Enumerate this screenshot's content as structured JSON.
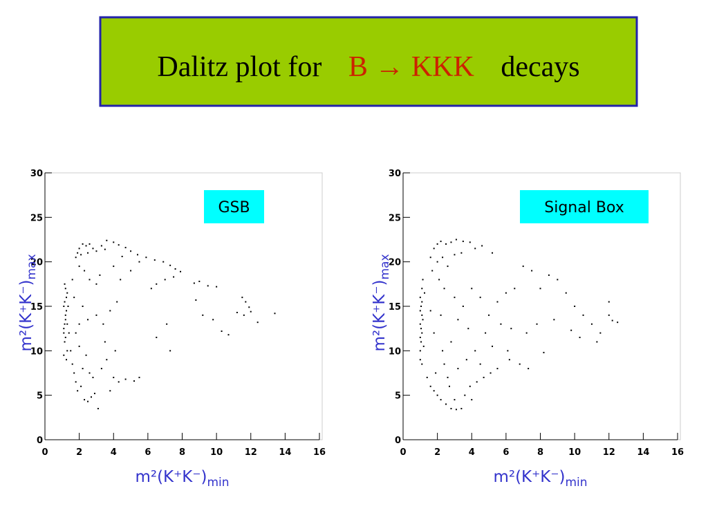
{
  "slide_title": {
    "prefix": "Dalitz plot for",
    "formula": "B → KKK",
    "suffix": "decays"
  },
  "chart_data": [
    {
      "type": "scatter",
      "legend": "GSB",
      "legend_color": "#00ffff",
      "color": "#000000",
      "xlabel": {
        "main": "m²(K⁺K⁻)",
        "sub": "min"
      },
      "ylabel": {
        "main": "m²(K⁺K⁻)",
        "sub": "max"
      },
      "xlim": [
        0,
        16
      ],
      "ylim": [
        0,
        30
      ],
      "xticks": [
        0,
        2,
        4,
        6,
        8,
        10,
        12,
        14,
        16
      ],
      "yticks": [
        0,
        5,
        10,
        15,
        20,
        25,
        30
      ],
      "x": [
        1.1,
        1.15,
        1.2,
        1.1,
        1.25,
        1.2,
        1.15,
        1.3,
        1.1,
        1.2,
        1.25,
        1.15,
        1.3,
        1.1,
        1.2,
        1.3,
        1.15,
        1.35,
        1.4,
        1.25,
        1.8,
        2.0,
        2.2,
        2.4,
        2.6,
        2.8,
        3.0,
        3.3,
        3.6,
        4.0,
        4.3,
        4.7,
        5.0,
        5.4,
        5.9,
        6.4,
        6.9,
        7.3,
        7.6,
        7.9,
        1.9,
        2.1,
        2.5,
        3.5,
        4.5,
        5.5,
        2,
        2.3,
        2.6,
        3,
        1.6,
        1.7,
        2.2,
        2.5,
        3,
        3.4,
        3.8,
        4.2,
        3.2,
        4,
        4.4,
        5,
        6.5,
        7,
        7.5,
        6.2,
        8.7,
        9,
        9.5,
        10,
        8.8,
        9.2,
        9.8,
        10.3,
        10.7,
        11.5,
        11.7,
        11.9,
        12,
        11.6,
        12.4,
        13.4,
        11.2,
        7.1,
        6.5,
        7.3,
        1.5,
        1.6,
        1.7,
        1.8,
        1.9,
        2.1,
        2.3,
        2.5,
        2.7,
        2.9,
        3.1,
        2.6,
        2.8,
        3.3,
        3.6,
        4,
        4.3,
        4.7,
        5.2,
        5.5,
        3.5,
        4.1,
        2.2,
        2.4,
        3.8,
        2.0,
        1.8,
        2.0
      ],
      "y": [
        12,
        13,
        14,
        15,
        16,
        17,
        11,
        10,
        9.5,
        13.5,
        14.5,
        15.5,
        16.5,
        12.5,
        11.5,
        13,
        17.5,
        15,
        12,
        9,
        20.5,
        21.5,
        22,
        21.8,
        22,
        21.5,
        21.2,
        21.8,
        22.4,
        22.2,
        21.9,
        21.6,
        21.2,
        20.8,
        20.5,
        20.2,
        20,
        19.6,
        19.2,
        18.9,
        21,
        20.8,
        21,
        21.4,
        20.6,
        20,
        19.5,
        19,
        18,
        17.5,
        18,
        16,
        15,
        13.5,
        14,
        13,
        14.5,
        15.5,
        18.5,
        19.5,
        18,
        19,
        17.5,
        18,
        18.3,
        17,
        17.6,
        17.8,
        17.3,
        17.2,
        15.7,
        14,
        13.5,
        12.2,
        11.8,
        16,
        15.5,
        14.9,
        14.4,
        14,
        13.2,
        14.2,
        14.3,
        13,
        11.5,
        10,
        10,
        8.5,
        7.5,
        6.5,
        5.5,
        6,
        4.5,
        4.3,
        4.8,
        5.2,
        3.5,
        7.5,
        7,
        8,
        9,
        7,
        6.5,
        6.8,
        6.6,
        7,
        11,
        10,
        8,
        9.5,
        5.5,
        10.5,
        12,
        13
      ]
    },
    {
      "type": "scatter",
      "legend": "Signal Box",
      "legend_color": "#00ffff",
      "color": "#000000",
      "xlabel": {
        "main": "m²(K⁺K⁻)",
        "sub": "min"
      },
      "ylabel": {
        "main": "m²(K⁺K⁻)",
        "sub": "max"
      },
      "xlim": [
        0,
        16
      ],
      "ylim": [
        0,
        30
      ],
      "xticks": [
        0,
        2,
        4,
        6,
        8,
        10,
        12,
        14,
        16
      ],
      "yticks": [
        0,
        5,
        10,
        15,
        20,
        25,
        30
      ],
      "x": [
        1.0,
        1.05,
        1.1,
        1.0,
        1.1,
        1.05,
        1.0,
        1.1,
        1.15,
        1.0,
        1.1,
        1.05,
        1.0,
        1.15,
        1.0,
        1.1,
        1.2,
        1.25,
        1.6,
        1.8,
        2.0,
        2.2,
        2.5,
        2.8,
        3.1,
        3.5,
        3.9,
        4.2,
        4.6,
        5.2,
        1.7,
        2,
        2.3,
        2.6,
        3,
        3.4,
        2.1,
        2.4,
        3,
        3.5,
        4,
        4.5,
        5,
        5.5,
        6,
        6.5,
        7,
        7.5,
        8,
        8.5,
        9,
        9.5,
        10,
        10.5,
        11,
        11.5,
        12,
        12.2,
        12.5,
        12,
        11.3,
        10.3,
        9.8,
        8.8,
        7.8,
        7.2,
        6.3,
        5.7,
        4.8,
        3.8,
        3.2,
        2.8,
        2.3,
        1.8,
        1.6,
        2.2,
        4.2,
        5.2,
        6.1,
        6.8,
        7.3,
        8.2,
        6.2,
        5.5,
        1.4,
        1.6,
        1.8,
        2.0,
        2.2,
        2.5,
        2.8,
        3.1,
        3.4,
        3.0,
        3.6,
        3.9,
        4.3,
        4.7,
        5.1,
        2.6,
        3.2,
        3.7,
        2.4,
        4.5,
        1.9,
        4,
        2.7
      ],
      "y": [
        10,
        11,
        12,
        13,
        14,
        15,
        16,
        17,
        18,
        9,
        8.5,
        12.5,
        11.5,
        13.5,
        14.5,
        15.5,
        10.5,
        16.5,
        20.5,
        21.5,
        22,
        22.3,
        22,
        22.2,
        22.5,
        22.3,
        22.2,
        21.5,
        21.8,
        21,
        19,
        20,
        20.5,
        19.5,
        20.8,
        21,
        18,
        17,
        16,
        15,
        17,
        16,
        14,
        15.5,
        16.5,
        17,
        19.5,
        19,
        17,
        18.5,
        18,
        16.5,
        15,
        14,
        13,
        12,
        14,
        13.4,
        13.2,
        15.5,
        11,
        11.5,
        12.3,
        13.5,
        13,
        12,
        12.5,
        13,
        12,
        12.5,
        13.5,
        11,
        10,
        12,
        14.5,
        14,
        10,
        10.5,
        10,
        8.5,
        8,
        9.8,
        9,
        8,
        7,
        6,
        5.5,
        5,
        4.5,
        4,
        3.5,
        3.4,
        3.5,
        4.5,
        5,
        6,
        6.5,
        7,
        7.5,
        7,
        8,
        9,
        8.5,
        8.5,
        7.5,
        4.5,
        6
      ]
    }
  ]
}
